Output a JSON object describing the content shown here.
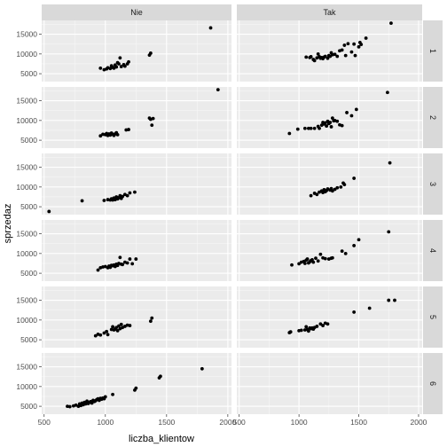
{
  "chart_data": {
    "type": "scatter",
    "xlabel": "liczba_klientow",
    "ylabel": "sprzedaz",
    "xlim": [
      480,
      2030
    ],
    "ylim": [
      3000,
      18500
    ],
    "x_ticks": [
      500,
      1000,
      1500,
      2000
    ],
    "y_ticks": [
      5000,
      10000,
      15000
    ],
    "x_tick_labels": [
      "500",
      "1000",
      "1500",
      "2000"
    ],
    "y_tick_labels": [
      "5000",
      "10000",
      "15000"
    ],
    "col_facets": [
      "Nie",
      "Tak"
    ],
    "row_facets": [
      "1",
      "2",
      "3",
      "4",
      "5",
      "6"
    ],
    "panels": [
      {
        "row": "1",
        "col": "Nie",
        "points": [
          [
            960,
            6400
          ],
          [
            990,
            6000
          ],
          [
            1010,
            6200
          ],
          [
            1020,
            6500
          ],
          [
            1040,
            6300
          ],
          [
            1050,
            7000
          ],
          [
            1060,
            6600
          ],
          [
            1070,
            6400
          ],
          [
            1080,
            7200
          ],
          [
            1090,
            6700
          ],
          [
            1100,
            7800
          ],
          [
            1110,
            7500
          ],
          [
            1120,
            9000
          ],
          [
            1130,
            6800
          ],
          [
            1150,
            7300
          ],
          [
            1160,
            6900
          ],
          [
            1180,
            7500
          ],
          [
            1190,
            8000
          ],
          [
            1360,
            9700
          ],
          [
            1370,
            10200
          ],
          [
            1860,
            16600
          ]
        ]
      },
      {
        "row": "1",
        "col": "Tak",
        "points": [
          [
            1060,
            9200
          ],
          [
            1090,
            9100
          ],
          [
            1100,
            9300
          ],
          [
            1120,
            8600
          ],
          [
            1130,
            8300
          ],
          [
            1150,
            9000
          ],
          [
            1160,
            10000
          ],
          [
            1170,
            9300
          ],
          [
            1180,
            8900
          ],
          [
            1190,
            9100
          ],
          [
            1200,
            8800
          ],
          [
            1210,
            9200
          ],
          [
            1220,
            9400
          ],
          [
            1240,
            8900
          ],
          [
            1250,
            9600
          ],
          [
            1260,
            9400
          ],
          [
            1270,
            10300
          ],
          [
            1280,
            9800
          ],
          [
            1300,
            9900
          ],
          [
            1320,
            9400
          ],
          [
            1340,
            10800
          ],
          [
            1360,
            11000
          ],
          [
            1380,
            12200
          ],
          [
            1390,
            9600
          ],
          [
            1410,
            12600
          ],
          [
            1440,
            10500
          ],
          [
            1460,
            12500
          ],
          [
            1470,
            9600
          ],
          [
            1500,
            11800
          ],
          [
            1510,
            12900
          ],
          [
            1520,
            12400
          ],
          [
            1560,
            14000
          ],
          [
            1770,
            17800
          ]
        ]
      },
      {
        "row": "2",
        "col": "Nie",
        "points": [
          [
            960,
            6100
          ],
          [
            980,
            6500
          ],
          [
            1000,
            6400
          ],
          [
            1010,
            6700
          ],
          [
            1020,
            6200
          ],
          [
            1030,
            6600
          ],
          [
            1040,
            6300
          ],
          [
            1050,
            6800
          ],
          [
            1060,
            6500
          ],
          [
            1070,
            6200
          ],
          [
            1080,
            6600
          ],
          [
            1090,
            6900
          ],
          [
            1100,
            6400
          ],
          [
            1170,
            7600
          ],
          [
            1190,
            7700
          ],
          [
            1360,
            10600
          ],
          [
            1370,
            10300
          ],
          [
            1380,
            8800
          ],
          [
            1390,
            10500
          ],
          [
            1920,
            17800
          ]
        ]
      },
      {
        "row": "2",
        "col": "Tak",
        "points": [
          [
            920,
            6700
          ],
          [
            990,
            7800
          ],
          [
            1050,
            8000
          ],
          [
            1080,
            8000
          ],
          [
            1100,
            8000
          ],
          [
            1130,
            8000
          ],
          [
            1160,
            8500
          ],
          [
            1170,
            8000
          ],
          [
            1190,
            8800
          ],
          [
            1200,
            9500
          ],
          [
            1210,
            9100
          ],
          [
            1220,
            9400
          ],
          [
            1230,
            8600
          ],
          [
            1240,
            9800
          ],
          [
            1250,
            9200
          ],
          [
            1260,
            9500
          ],
          [
            1270,
            8400
          ],
          [
            1280,
            10600
          ],
          [
            1290,
            9900
          ],
          [
            1300,
            10000
          ],
          [
            1320,
            9800
          ],
          [
            1340,
            8900
          ],
          [
            1360,
            8700
          ],
          [
            1400,
            12000
          ],
          [
            1440,
            11200
          ],
          [
            1480,
            12800
          ],
          [
            1740,
            17100
          ]
        ]
      },
      {
        "row": "3",
        "col": "Nie",
        "points": [
          [
            540,
            3800
          ],
          [
            810,
            6500
          ],
          [
            990,
            6600
          ],
          [
            1020,
            6800
          ],
          [
            1040,
            6700
          ],
          [
            1050,
            7000
          ],
          [
            1060,
            6700
          ],
          [
            1070,
            7200
          ],
          [
            1080,
            6800
          ],
          [
            1090,
            7500
          ],
          [
            1100,
            7000
          ],
          [
            1110,
            7300
          ],
          [
            1120,
            7800
          ],
          [
            1130,
            7100
          ],
          [
            1140,
            7600
          ],
          [
            1160,
            8100
          ],
          [
            1180,
            7800
          ],
          [
            1200,
            8500
          ],
          [
            1240,
            8700
          ]
        ]
      },
      {
        "row": "3",
        "col": "Tak",
        "points": [
          [
            1100,
            7800
          ],
          [
            1130,
            8400
          ],
          [
            1150,
            8100
          ],
          [
            1170,
            8700
          ],
          [
            1190,
            9000
          ],
          [
            1200,
            8600
          ],
          [
            1210,
            9300
          ],
          [
            1220,
            8800
          ],
          [
            1230,
            9100
          ],
          [
            1240,
            9500
          ],
          [
            1260,
            9200
          ],
          [
            1270,
            9600
          ],
          [
            1280,
            9000
          ],
          [
            1300,
            9400
          ],
          [
            1320,
            9800
          ],
          [
            1350,
            10000
          ],
          [
            1370,
            11000
          ],
          [
            1380,
            10600
          ],
          [
            1460,
            12200
          ],
          [
            1760,
            16100
          ]
        ]
      },
      {
        "row": "4",
        "col": "Nie",
        "points": [
          [
            940,
            5800
          ],
          [
            960,
            6400
          ],
          [
            980,
            6600
          ],
          [
            1000,
            6700
          ],
          [
            1020,
            6400
          ],
          [
            1030,
            6800
          ],
          [
            1040,
            6500
          ],
          [
            1050,
            7000
          ],
          [
            1060,
            6900
          ],
          [
            1070,
            7100
          ],
          [
            1080,
            6700
          ],
          [
            1090,
            7300
          ],
          [
            1100,
            7000
          ],
          [
            1110,
            7500
          ],
          [
            1120,
            9000
          ],
          [
            1130,
            7300
          ],
          [
            1140,
            7200
          ],
          [
            1160,
            7800
          ],
          [
            1180,
            7600
          ],
          [
            1200,
            8600
          ],
          [
            1220,
            7400
          ],
          [
            1250,
            8600
          ]
        ]
      },
      {
        "row": "4",
        "col": "Tak",
        "points": [
          [
            940,
            7100
          ],
          [
            1000,
            7400
          ],
          [
            1020,
            7800
          ],
          [
            1040,
            8000
          ],
          [
            1050,
            7500
          ],
          [
            1060,
            8300
          ],
          [
            1070,
            8600
          ],
          [
            1080,
            7600
          ],
          [
            1090,
            7900
          ],
          [
            1100,
            8200
          ],
          [
            1110,
            8400
          ],
          [
            1120,
            7800
          ],
          [
            1140,
            8800
          ],
          [
            1160,
            8100
          ],
          [
            1180,
            9800
          ],
          [
            1200,
            8900
          ],
          [
            1220,
            8700
          ],
          [
            1250,
            8600
          ],
          [
            1270,
            8800
          ],
          [
            1280,
            8900
          ],
          [
            1360,
            10600
          ],
          [
            1390,
            10000
          ],
          [
            1460,
            12000
          ],
          [
            1500,
            13500
          ],
          [
            1750,
            15500
          ]
        ]
      },
      {
        "row": "5",
        "col": "Nie",
        "points": [
          [
            920,
            6000
          ],
          [
            940,
            6400
          ],
          [
            960,
            6200
          ],
          [
            990,
            6700
          ],
          [
            1010,
            7100
          ],
          [
            1020,
            6300
          ],
          [
            1050,
            7600
          ],
          [
            1060,
            8300
          ],
          [
            1070,
            7500
          ],
          [
            1080,
            7700
          ],
          [
            1090,
            8100
          ],
          [
            1100,
            7300
          ],
          [
            1110,
            8500
          ],
          [
            1120,
            7800
          ],
          [
            1130,
            8900
          ],
          [
            1140,
            8100
          ],
          [
            1160,
            8400
          ],
          [
            1180,
            8700
          ],
          [
            1200,
            8600
          ],
          [
            1370,
            9700
          ],
          [
            1380,
            10500
          ]
        ]
      },
      {
        "row": "5",
        "col": "Tak",
        "points": [
          [
            920,
            6800
          ],
          [
            930,
            7000
          ],
          [
            1000,
            7300
          ],
          [
            1020,
            7400
          ],
          [
            1050,
            7500
          ],
          [
            1060,
            8300
          ],
          [
            1070,
            7600
          ],
          [
            1080,
            7200
          ],
          [
            1090,
            8000
          ],
          [
            1100,
            7800
          ],
          [
            1110,
            8000
          ],
          [
            1120,
            7700
          ],
          [
            1130,
            8100
          ],
          [
            1150,
            8400
          ],
          [
            1180,
            9000
          ],
          [
            1200,
            8600
          ],
          [
            1220,
            9200
          ],
          [
            1240,
            9000
          ],
          [
            1460,
            12000
          ],
          [
            1590,
            13000
          ],
          [
            1750,
            15000
          ],
          [
            1800,
            15000
          ]
        ]
      },
      {
        "row": "6",
        "col": "Nie",
        "points": [
          [
            690,
            5000
          ],
          [
            710,
            4900
          ],
          [
            740,
            5100
          ],
          [
            760,
            5300
          ],
          [
            780,
            5000
          ],
          [
            790,
            5600
          ],
          [
            800,
            5200
          ],
          [
            810,
            5800
          ],
          [
            820,
            5400
          ],
          [
            830,
            6000
          ],
          [
            840,
            5600
          ],
          [
            850,
            6300
          ],
          [
            860,
            5700
          ],
          [
            870,
            6000
          ],
          [
            880,
            6200
          ],
          [
            890,
            5800
          ],
          [
            900,
            6500
          ],
          [
            910,
            6200
          ],
          [
            920,
            6400
          ],
          [
            930,
            6700
          ],
          [
            940,
            6900
          ],
          [
            950,
            6500
          ],
          [
            960,
            7000
          ],
          [
            970,
            6800
          ],
          [
            980,
            7100
          ],
          [
            990,
            6900
          ],
          [
            1000,
            7400
          ],
          [
            1060,
            8000
          ],
          [
            1240,
            9100
          ],
          [
            1250,
            9600
          ],
          [
            1440,
            12200
          ],
          [
            1450,
            12600
          ],
          [
            1790,
            14500
          ]
        ]
      }
    ]
  }
}
